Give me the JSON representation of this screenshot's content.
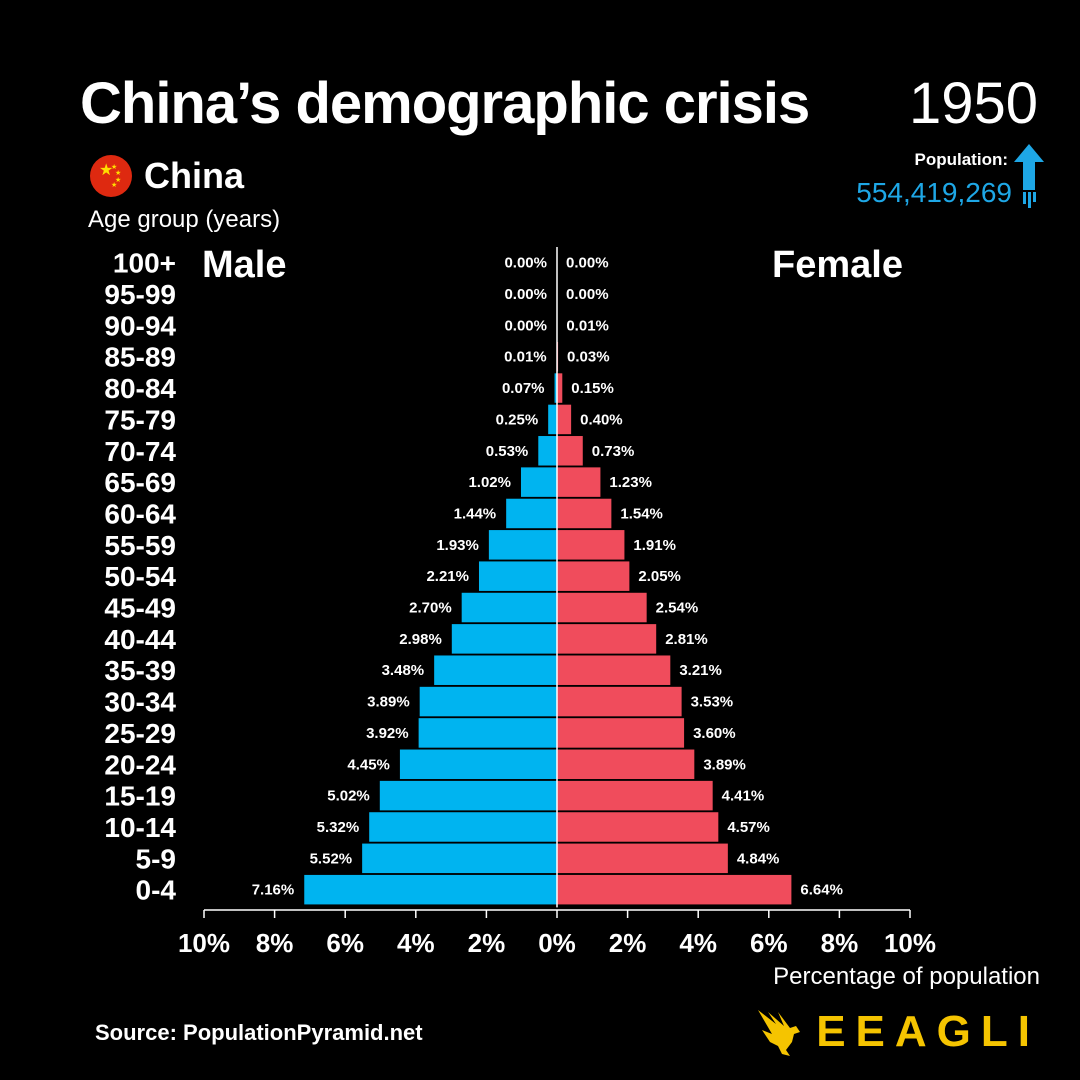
{
  "header": {
    "title": "China’s demographic crisis",
    "year": "1950",
    "population_label": "Population:",
    "population_value": "554,419,269",
    "country": "China",
    "age_group_label": "Age group (years)"
  },
  "colors": {
    "male": "#00b4f0",
    "female": "#f04c5c",
    "accent": "#1ea7e6",
    "logo": "#f5c400"
  },
  "chart_data": {
    "type": "bar",
    "orientation": "horizontal",
    "title": "China’s demographic crisis",
    "xlabel": "Percentage of population",
    "ylabel": "Age group (years)",
    "categories": [
      "100+",
      "95-99",
      "90-94",
      "85-89",
      "80-84",
      "75-79",
      "70-74",
      "65-69",
      "60-64",
      "55-59",
      "50-54",
      "45-49",
      "40-44",
      "35-39",
      "30-34",
      "25-29",
      "20-24",
      "15-19",
      "10-14",
      "5-9",
      "0-4"
    ],
    "series": [
      {
        "name": "Male",
        "values": [
          0.0,
          0.0,
          0.0,
          0.01,
          0.07,
          0.25,
          0.53,
          1.02,
          1.44,
          1.93,
          2.21,
          2.7,
          2.98,
          3.48,
          3.89,
          3.92,
          4.45,
          5.02,
          5.32,
          5.52,
          7.16
        ]
      },
      {
        "name": "Female",
        "values": [
          0.0,
          0.0,
          0.01,
          0.03,
          0.15,
          0.4,
          0.73,
          1.23,
          1.54,
          1.91,
          2.05,
          2.54,
          2.81,
          3.21,
          3.53,
          3.6,
          3.89,
          4.41,
          4.57,
          4.84,
          6.64
        ]
      }
    ],
    "xlim": [
      -10,
      10
    ],
    "xticks": [
      "10%",
      "8%",
      "6%",
      "4%",
      "2%",
      "0%",
      "2%",
      "4%",
      "6%",
      "8%",
      "10%"
    ],
    "value_suffix": "%"
  },
  "labels": {
    "male": "Male",
    "female": "Female"
  },
  "footer": {
    "source": "Source: PopulationPyramid.net",
    "logo_text": "EEAGLI"
  }
}
